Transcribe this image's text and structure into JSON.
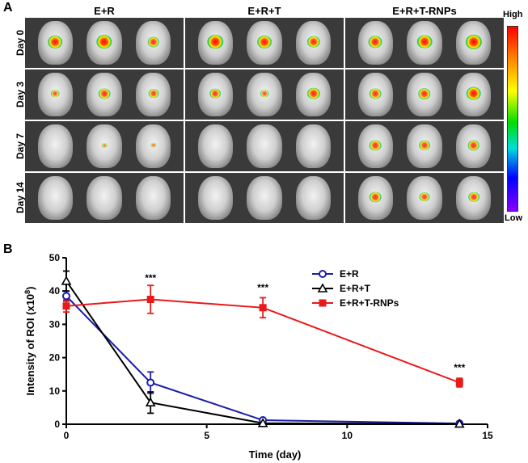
{
  "panel_a": {
    "label": "A",
    "groups": [
      "E+R",
      "E+R+T",
      "E+R+T-RNPs"
    ],
    "days": [
      "Day 0",
      "Day 3",
      "Day 7",
      "Day 14"
    ],
    "signal_levels": [
      [
        [
          0.8,
          0.9,
          0.6
        ],
        [
          0.9,
          0.8,
          0.7
        ],
        [
          0.75,
          0.85,
          0.95
        ]
      ],
      [
        [
          0.35,
          0.6,
          0.5
        ],
        [
          0.55,
          0.35,
          0.7
        ],
        [
          0.6,
          0.65,
          0.85
        ]
      ],
      [
        [
          0,
          0.1,
          0.15
        ],
        [
          0,
          0,
          0
        ],
        [
          0.6,
          0.55,
          0.6
        ]
      ],
      [
        [
          0,
          0,
          0
        ],
        [
          0,
          0,
          0
        ],
        [
          0.6,
          0.5,
          0.55
        ]
      ]
    ],
    "colorbar_high": "High",
    "colorbar_low": "Low"
  },
  "panel_b": {
    "label": "B"
  },
  "chart_data": {
    "type": "line",
    "xlabel": "Time (day)",
    "ylabel": "Intensity of ROI (x10",
    "ylabel_sup": "8",
    "ylabel_end": ")",
    "xlim": [
      0,
      15
    ],
    "ylim": [
      0,
      50
    ],
    "xticks": [
      0,
      5,
      10,
      15
    ],
    "yticks": [
      0,
      10,
      20,
      30,
      40,
      50
    ],
    "series": [
      {
        "name": "E+R",
        "color": "#1c1caa",
        "marker": "circle",
        "x": [
          0,
          3,
          7,
          14
        ],
        "y": [
          38.5,
          12.5,
          1.2,
          0.2
        ],
        "err": [
          1.5,
          3.2,
          0.3,
          0.2
        ]
      },
      {
        "name": "E+R+T",
        "color": "#000000",
        "marker": "triangle",
        "x": [
          0,
          3,
          7,
          14
        ],
        "y": [
          43,
          6.5,
          0.3,
          0.1
        ],
        "err": [
          3,
          3.2,
          0.2,
          0.1
        ]
      },
      {
        "name": "E+R+T-RNPs",
        "color": "#e8191a",
        "marker": "square",
        "x": [
          0,
          3,
          7,
          14
        ],
        "y": [
          35.5,
          37.5,
          35,
          12.5
        ],
        "err": [
          1.8,
          4.2,
          3,
          1.3
        ]
      }
    ],
    "annotations": [
      {
        "x": 3,
        "y": 43,
        "text": "***"
      },
      {
        "x": 7,
        "y": 40,
        "text": "***"
      },
      {
        "x": 14,
        "y": 16,
        "text": "***"
      }
    ],
    "legend_position": "top-right"
  }
}
